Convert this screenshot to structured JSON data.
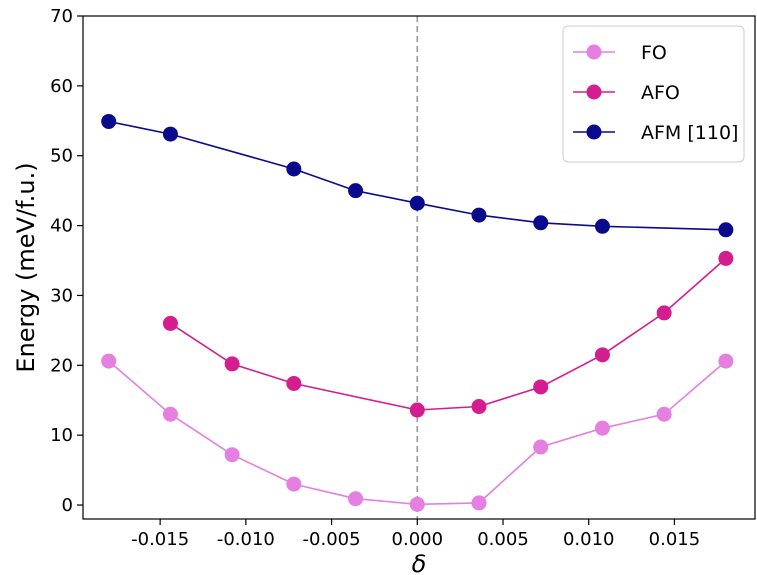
{
  "chart_data": {
    "type": "line",
    "xlabel": "δ",
    "ylabel": "Energy (meV/f.u.)",
    "xlim": [
      -0.0195,
      0.0197
    ],
    "ylim": [
      -2,
      70
    ],
    "x_ticks": [
      -0.015,
      -0.01,
      -0.005,
      0.0,
      0.005,
      0.01,
      0.015
    ],
    "x_tick_labels": [
      "-0.015",
      "-0.010",
      "-0.005",
      "0.000",
      "0.005",
      "0.010",
      "0.015"
    ],
    "y_ticks": [
      0,
      10,
      20,
      30,
      40,
      50,
      60,
      70
    ],
    "y_tick_labels": [
      "0",
      "10",
      "20",
      "30",
      "40",
      "50",
      "60",
      "70"
    ],
    "grid": false,
    "legend_position": "top-right",
    "reference_line": {
      "x": 0.0,
      "style": "dashed",
      "color": "#999999"
    },
    "series": [
      {
        "name": "FO",
        "color": "#e57fe0",
        "x": [
          -0.018,
          -0.0144,
          -0.0108,
          -0.0072,
          -0.0036,
          0.0,
          0.0036,
          0.0072,
          0.0108,
          0.0144,
          0.018
        ],
        "y": [
          20.6,
          13.0,
          7.2,
          3.0,
          0.9,
          0.1,
          0.3,
          8.3,
          11.0,
          13.0,
          20.6
        ]
      },
      {
        "name": "AFO",
        "color": "#d41d8f",
        "x": [
          -0.0144,
          -0.0108,
          -0.0072,
          0.0,
          0.0036,
          0.0072,
          0.0108,
          0.0144,
          0.018
        ],
        "y": [
          26.0,
          20.2,
          17.4,
          13.6,
          14.1,
          16.9,
          21.5,
          27.5,
          35.3
        ]
      },
      {
        "name": "AFM [110]",
        "color": "#0a0a8c",
        "x": [
          -0.018,
          -0.0144,
          -0.0072,
          -0.0036,
          0.0,
          0.0036,
          0.0072,
          0.0108,
          0.018
        ],
        "y": [
          54.9,
          53.1,
          48.1,
          45.0,
          43.2,
          41.5,
          40.4,
          39.9,
          39.4
        ]
      }
    ]
  }
}
